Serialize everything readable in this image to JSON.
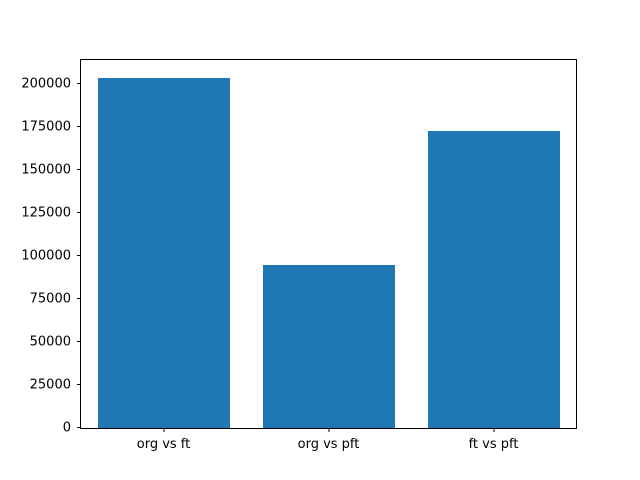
{
  "chart_data": {
    "type": "bar",
    "categories": [
      "org vs ft",
      "org vs pft",
      "ft vs pft"
    ],
    "values": [
      204000,
      95000,
      173000
    ],
    "title": "",
    "xlabel": "",
    "ylabel": "",
    "ylim": [
      0,
      214200
    ],
    "yticks": [
      0,
      25000,
      50000,
      75000,
      100000,
      125000,
      150000,
      175000,
      200000
    ],
    "bar_color": "#1f77b4",
    "bar_width_fraction": 0.8,
    "grid": false,
    "legend_position": "none"
  }
}
